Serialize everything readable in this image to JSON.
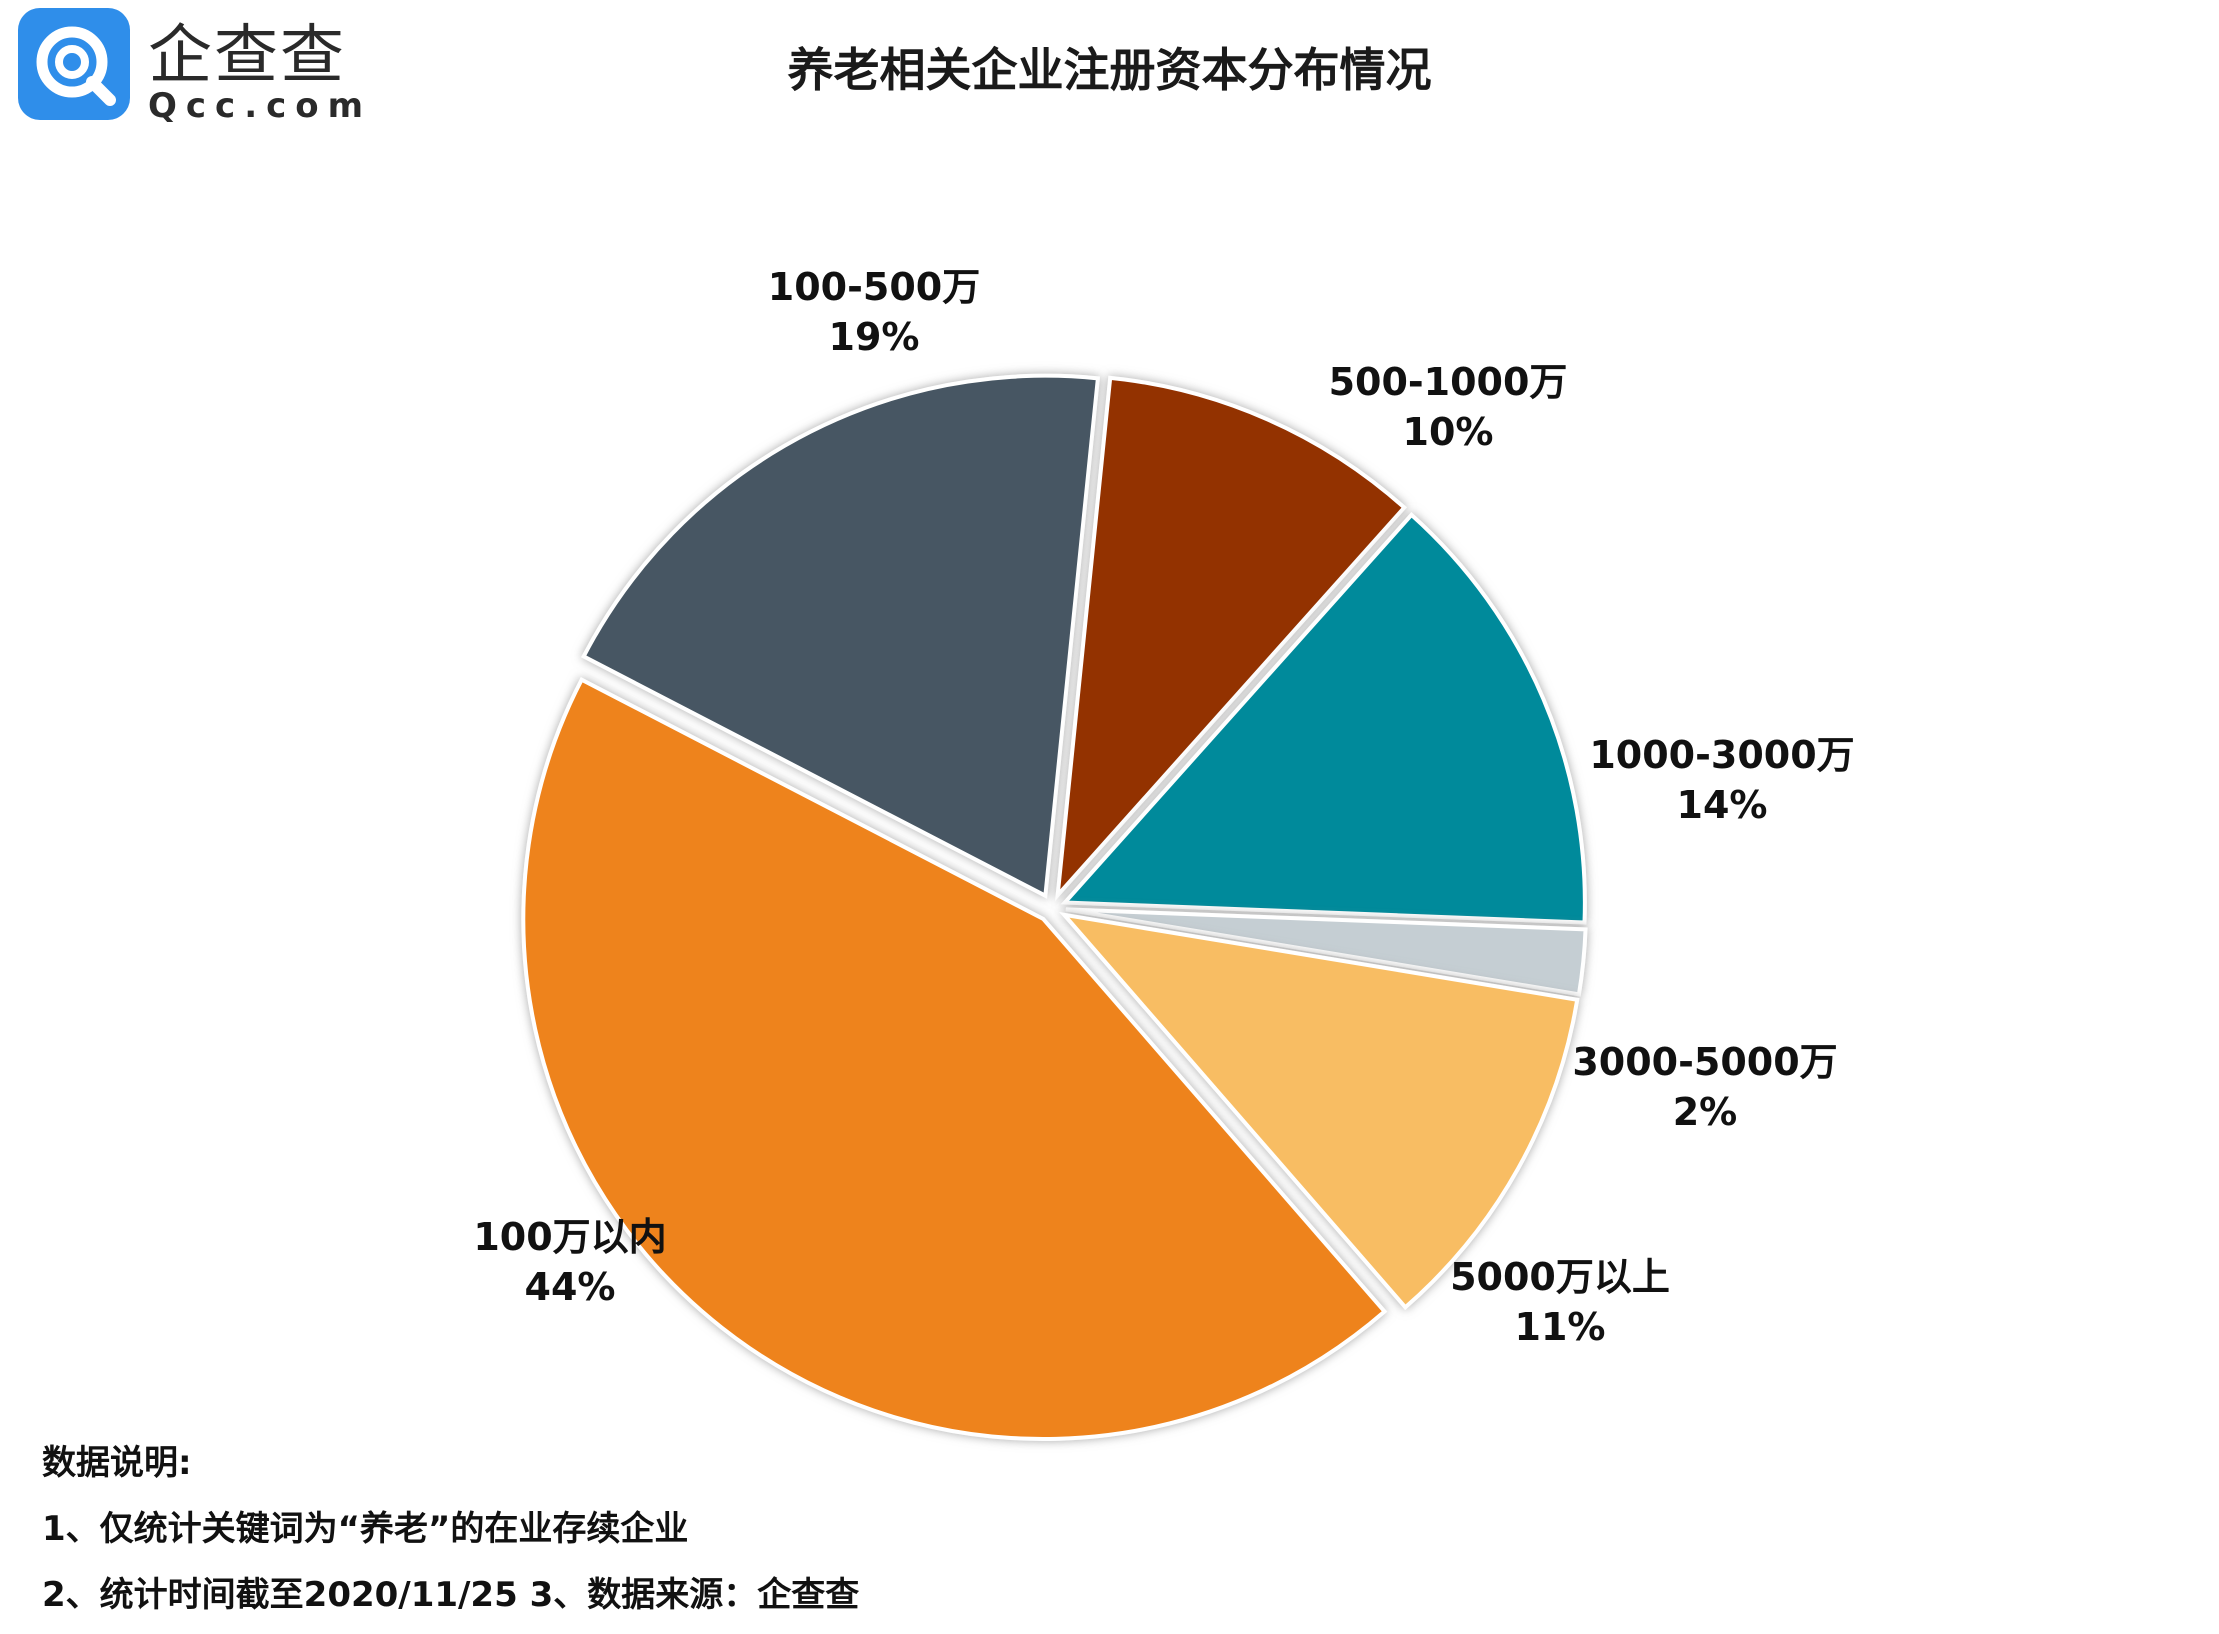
{
  "brand": {
    "name_cn": "企查查",
    "name_en": "Qcc.com",
    "logo_color": "#2f8eea"
  },
  "notes": {
    "heading": "数据说明:",
    "line1": "1、仅统计关键词为“养老”的在业存续企业",
    "line2": "2、统计时间截至2020/11/25   3、数据来源：企查查"
  },
  "chart_data": {
    "type": "pie",
    "title": "养老相关企业注册资本分布情况",
    "exploded": true,
    "slices": [
      {
        "label": "100万以内",
        "value": 44,
        "value_label": "44%",
        "color": "#ee831b"
      },
      {
        "label": "100-500万",
        "value": 19,
        "value_label": "19%",
        "color": "#475763"
      },
      {
        "label": "500-1000万",
        "value": 10,
        "value_label": "10%",
        "color": "#933003"
      },
      {
        "label": "1000-3000万",
        "value": 14,
        "value_label": "14%",
        "color": "#008a9b"
      },
      {
        "label": "3000-5000万",
        "value": 2,
        "value_label": "2%",
        "color": "#c5ced3"
      },
      {
        "label": "5000万以上",
        "value": 11,
        "value_label": "11%",
        "color": "#f8bd64"
      }
    ]
  }
}
